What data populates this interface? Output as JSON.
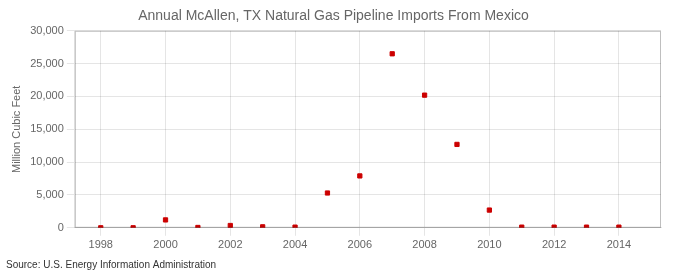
{
  "chart_data": {
    "type": "scatter",
    "title": "Annual McAllen, TX Natural Gas Pipeline Imports From Mexico",
    "ylabel": "Million Cubic Feet",
    "annotations": [
      "Source: U.S. Energy Information Administration"
    ],
    "x": [
      1998,
      1999,
      2000,
      2001,
      2002,
      2003,
      2004,
      2005,
      2006,
      2007,
      2008,
      2009,
      2010,
      2011,
      2012,
      2013,
      2014
    ],
    "values": [
      5,
      5,
      1200,
      50,
      350,
      150,
      100,
      5300,
      7900,
      26500,
      20200,
      12700,
      2700,
      100,
      100,
      100,
      100
    ],
    "color": "#cc0000",
    "marker": "square",
    "xlim": [
      1997.2,
      2015.3
    ],
    "xticks": [
      1998,
      2000,
      2002,
      2004,
      2006,
      2008,
      2010,
      2012,
      2014
    ],
    "ylim": [
      0,
      30000
    ],
    "yticks": [
      0,
      {
        "value": 5000,
        "label": "5,000"
      },
      {
        "value": 10000,
        "label": "10,000"
      },
      {
        "value": 15000,
        "label": "15,000"
      },
      {
        "value": 20000,
        "label": "20,000"
      },
      {
        "value": 25000,
        "label": "25,000"
      },
      {
        "value": 30000,
        "label": "30,000"
      }
    ],
    "grid": true
  }
}
